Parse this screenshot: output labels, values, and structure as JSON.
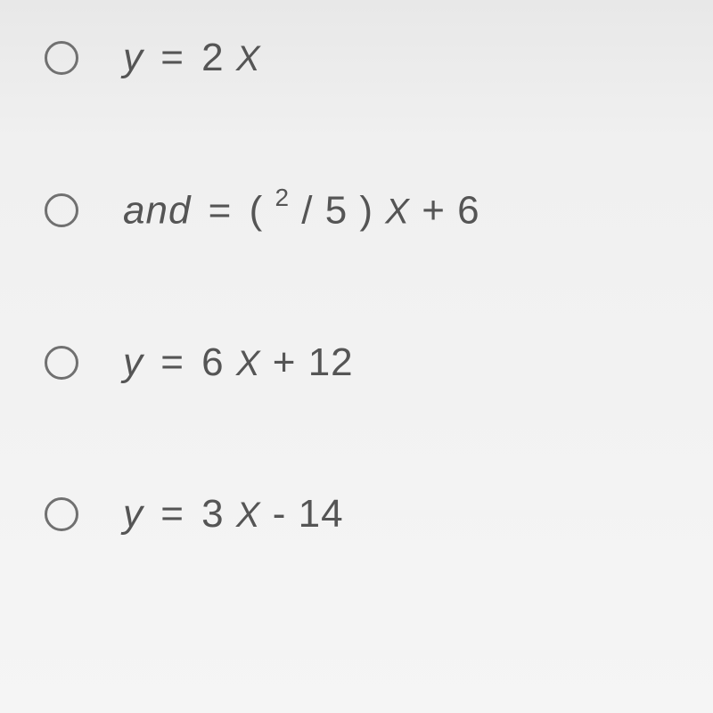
{
  "options": [
    {
      "id": "option-1",
      "parts": {
        "lhs": "y",
        "eq": " = ",
        "coef": "2 ",
        "var": "x"
      }
    },
    {
      "id": "option-2",
      "parts": {
        "lhs": "and",
        "eq": " = ",
        "open": "( ",
        "sup": "2",
        "mid": " / 5 ) ",
        "var": "x",
        "tail": " + 6"
      }
    },
    {
      "id": "option-3",
      "parts": {
        "lhs": "y",
        "eq": " = ",
        "coef": "6 ",
        "var": "x",
        "tail": " + 12"
      }
    },
    {
      "id": "option-4",
      "parts": {
        "lhs": "y",
        "eq": " = ",
        "coef": "3 ",
        "var": "x",
        "tail": " - 14"
      }
    }
  ],
  "styling": {
    "radio_border_color": "#707070",
    "text_color": "#555555",
    "background_gradient_top": "#e8e8e8",
    "background_gradient_bottom": "#f5f5f5",
    "font_size_main": 44,
    "font_size_superscript": 28,
    "row_spacing": 120
  }
}
